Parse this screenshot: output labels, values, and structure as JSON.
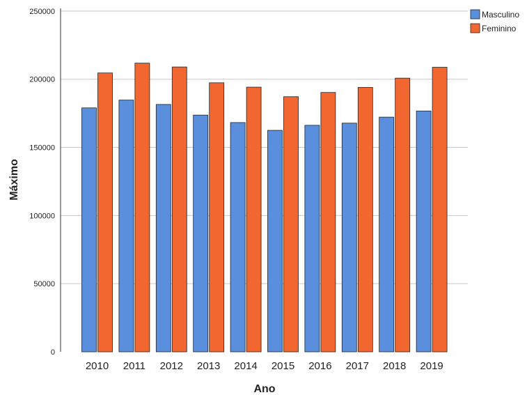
{
  "chart_data": {
    "type": "bar",
    "title": "",
    "xlabel": "Ano",
    "ylabel": "Máximo",
    "categories": [
      "2010",
      "2011",
      "2012",
      "2013",
      "2014",
      "2015",
      "2016",
      "2017",
      "2018",
      "2019"
    ],
    "series": [
      {
        "name": "Masculino",
        "color": "#5a8fdd",
        "values": [
          179000,
          184700,
          181500,
          173700,
          168200,
          162500,
          166200,
          167800,
          172200,
          176700
        ]
      },
      {
        "name": "Feminino",
        "color": "#f2672f",
        "values": [
          204600,
          211800,
          209000,
          197400,
          194200,
          187200,
          190300,
          194000,
          200800,
          208800
        ]
      }
    ],
    "ylim": [
      0,
      252000
    ],
    "yticks": [
      0,
      50000,
      100000,
      150000,
      200000,
      250000
    ],
    "ytick_labels": [
      "0",
      "50000",
      "100000",
      "150000",
      "200000",
      "250000"
    ],
    "grid": true,
    "legend_position": "top-right"
  }
}
